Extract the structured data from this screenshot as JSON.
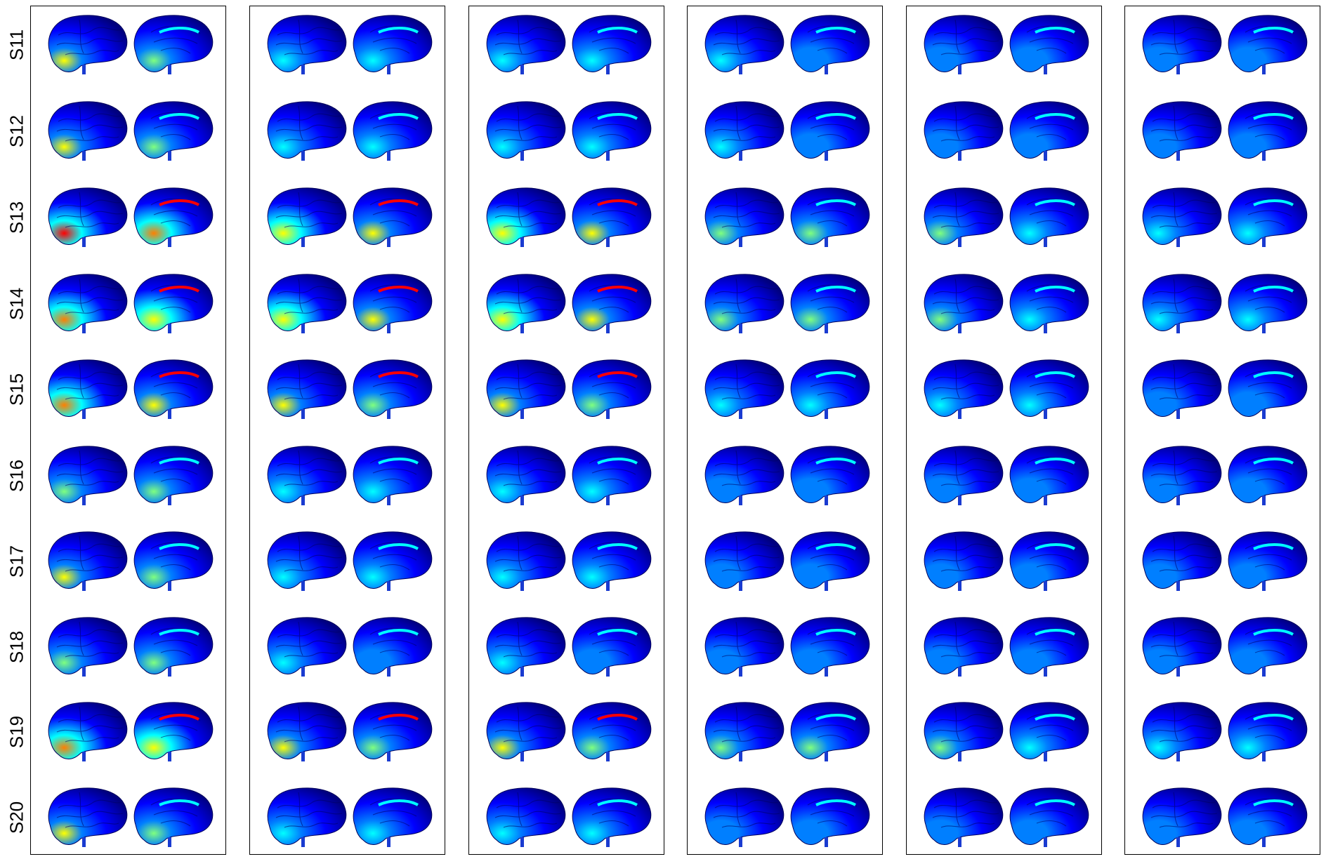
{
  "figure": {
    "row_labels": [
      "S11",
      "S12",
      "S13",
      "S14",
      "S15",
      "S16",
      "S17",
      "S18",
      "S19",
      "S20"
    ],
    "panel_count": 6,
    "views": [
      "lateral",
      "medial"
    ],
    "colormap": [
      "#00007f",
      "#0000ff",
      "#007fff",
      "#00ffff",
      "#7fff7f",
      "#ffff00",
      "#ff7f00",
      "#ff0000",
      "#7f0000"
    ],
    "intensity": [
      [
        0.45,
        0.3,
        0.28,
        0.2,
        0.15,
        0.1
      ],
      [
        0.45,
        0.3,
        0.28,
        0.2,
        0.15,
        0.1
      ],
      [
        0.7,
        0.55,
        0.55,
        0.4,
        0.35,
        0.25
      ],
      [
        0.65,
        0.55,
        0.55,
        0.4,
        0.35,
        0.25
      ],
      [
        0.6,
        0.5,
        0.5,
        0.3,
        0.25,
        0.15
      ],
      [
        0.4,
        0.25,
        0.25,
        0.18,
        0.12,
        0.08
      ],
      [
        0.45,
        0.25,
        0.25,
        0.18,
        0.12,
        0.08
      ],
      [
        0.42,
        0.22,
        0.22,
        0.15,
        0.12,
        0.08
      ],
      [
        0.65,
        0.5,
        0.5,
        0.4,
        0.35,
        0.25
      ],
      [
        0.45,
        0.3,
        0.28,
        0.15,
        0.12,
        0.08
      ]
    ]
  }
}
